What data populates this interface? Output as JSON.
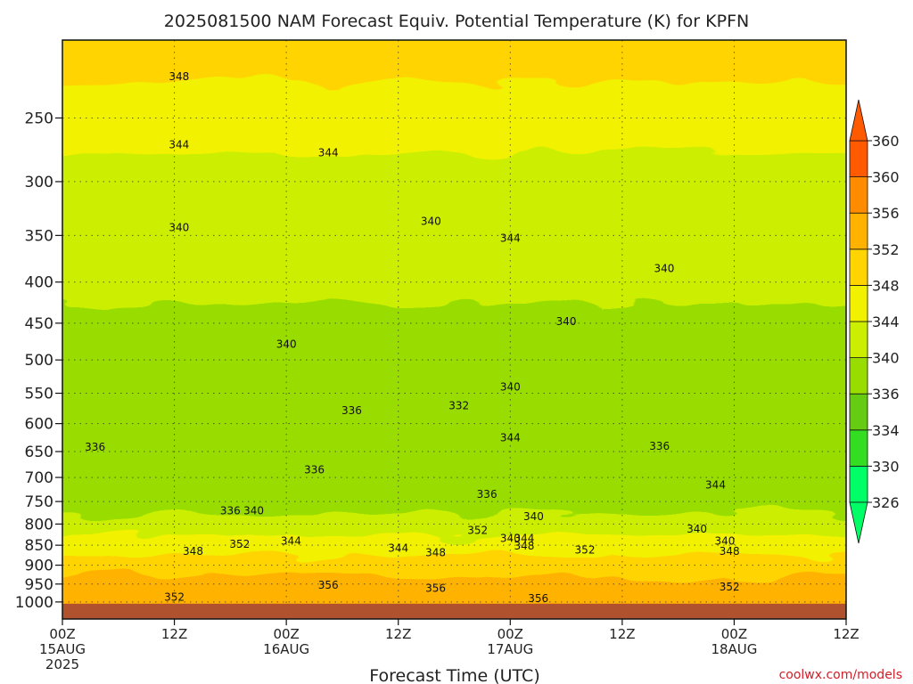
{
  "chart_data": {
    "type": "heatmap",
    "title": "2025081500 NAM Forecast Equiv. Potential Temperature (K) for KPFN",
    "xlabel": "Forecast Time (UTC)",
    "ylabel": "",
    "credit": "coolwx.com/models",
    "x_ticks": [
      {
        "h": 0,
        "line1": "00Z",
        "line2": "15AUG",
        "line3": "2025"
      },
      {
        "h": 12,
        "line1": "12Z",
        "line2": "",
        "line3": ""
      },
      {
        "h": 24,
        "line1": "00Z",
        "line2": "16AUG",
        "line3": ""
      },
      {
        "h": 36,
        "line1": "12Z",
        "line2": "",
        "line3": ""
      },
      {
        "h": 48,
        "line1": "00Z",
        "line2": "17AUG",
        "line3": ""
      },
      {
        "h": 60,
        "line1": "12Z",
        "line2": "",
        "line3": ""
      },
      {
        "h": 72,
        "line1": "00Z",
        "line2": "18AUG",
        "line3": ""
      },
      {
        "h": 84,
        "line1": "12Z",
        "line2": "",
        "line3": ""
      }
    ],
    "xlim_hours": [
      0,
      84
    ],
    "y_scale": "log-pressure (hPa, inverted)",
    "ylim_hpa": [
      1050,
      200
    ],
    "y_ticks": [
      250,
      300,
      350,
      400,
      450,
      500,
      550,
      600,
      650,
      700,
      750,
      800,
      850,
      900,
      950,
      1000
    ],
    "grid": true,
    "colorbar": {
      "position": "right",
      "levels": [
        326,
        330,
        334,
        336,
        340,
        344,
        348,
        352,
        356,
        360
      ],
      "colors": [
        "#00ff66",
        "#33dd22",
        "#66cc11",
        "#99dd00",
        "#ccee00",
        "#f2f200",
        "#ffd400",
        "#ffb300",
        "#ff8c00",
        "#ff5a00"
      ],
      "extend": "both"
    },
    "ground_color": "#b0522d",
    "layers": [
      {
        "p": 1000,
        "theta": 354
      },
      {
        "p": 950,
        "theta": 354
      },
      {
        "p": 900,
        "theta": 351
      },
      {
        "p": 850,
        "theta": 347
      },
      {
        "p": 800,
        "theta": 342
      },
      {
        "p": 750,
        "theta": 339
      },
      {
        "p": 700,
        "theta": 338
      },
      {
        "p": 650,
        "theta": 337
      },
      {
        "p": 600,
        "theta": 337
      },
      {
        "p": 550,
        "theta": 337
      },
      {
        "p": 500,
        "theta": 338
      },
      {
        "p": 450,
        "theta": 339
      },
      {
        "p": 400,
        "theta": 340
      },
      {
        "p": 350,
        "theta": 341
      },
      {
        "p": 300,
        "theta": 343
      },
      {
        "p": 250,
        "theta": 345
      },
      {
        "p": 200,
        "theta": 348
      }
    ],
    "contour_labels": [
      {
        "text": "348",
        "h": 12.5,
        "p": 222
      },
      {
        "text": "344",
        "h": 12.5,
        "p": 270
      },
      {
        "text": "344",
        "h": 28.5,
        "p": 276
      },
      {
        "text": "340",
        "h": 12.5,
        "p": 342
      },
      {
        "text": "340",
        "h": 39.5,
        "p": 336
      },
      {
        "text": "344",
        "h": 48.0,
        "p": 353
      },
      {
        "text": "340",
        "h": 64.5,
        "p": 385
      },
      {
        "text": "340",
        "h": 54.0,
        "p": 448
      },
      {
        "text": "340",
        "h": 24.0,
        "p": 478
      },
      {
        "text": "340",
        "h": 48.0,
        "p": 540
      },
      {
        "text": "336",
        "h": 31.0,
        "p": 578
      },
      {
        "text": "332",
        "h": 42.5,
        "p": 570
      },
      {
        "text": "344",
        "h": 48.0,
        "p": 625
      },
      {
        "text": "336",
        "h": 3.5,
        "p": 642
      },
      {
        "text": "336",
        "h": 64.0,
        "p": 640
      },
      {
        "text": "336",
        "h": 27.0,
        "p": 685
      },
      {
        "text": "336",
        "h": 45.5,
        "p": 735
      },
      {
        "text": "344",
        "h": 70.0,
        "p": 715
      },
      {
        "text": "336",
        "h": 18.0,
        "p": 770
      },
      {
        "text": "340",
        "h": 20.5,
        "p": 770
      },
      {
        "text": "340",
        "h": 50.5,
        "p": 783
      },
      {
        "text": "352",
        "h": 44.5,
        "p": 815
      },
      {
        "text": "340",
        "h": 68.0,
        "p": 812
      },
      {
        "text": "340",
        "h": 48.0,
        "p": 833
      },
      {
        "text": "344",
        "h": 49.5,
        "p": 833
      },
      {
        "text": "344",
        "h": 24.5,
        "p": 840
      },
      {
        "text": "340",
        "h": 71.0,
        "p": 840
      },
      {
        "text": "352",
        "h": 19.0,
        "p": 848
      },
      {
        "text": "348",
        "h": 49.5,
        "p": 852
      },
      {
        "text": "344",
        "h": 36.0,
        "p": 857
      },
      {
        "text": "352",
        "h": 56.0,
        "p": 862
      },
      {
        "text": "348",
        "h": 14.0,
        "p": 865
      },
      {
        "text": "348",
        "h": 40.0,
        "p": 868
      },
      {
        "text": "348",
        "h": 71.5,
        "p": 865
      },
      {
        "text": "356",
        "h": 28.5,
        "p": 953
      },
      {
        "text": "352",
        "h": 71.5,
        "p": 958
      },
      {
        "text": "356",
        "h": 40.0,
        "p": 962
      },
      {
        "text": "352",
        "h": 12.0,
        "p": 987
      },
      {
        "text": "356",
        "h": 51.0,
        "p": 990
      }
    ]
  }
}
